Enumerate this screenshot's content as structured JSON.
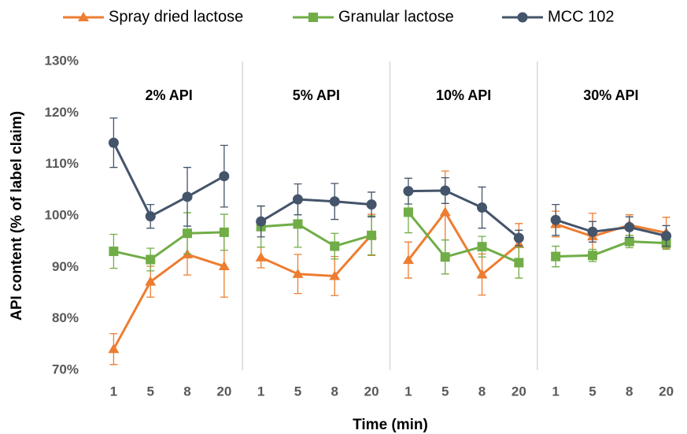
{
  "chart_data": {
    "type": "line",
    "x_label": "Time (min)",
    "y_label": "API content (% of label claim)",
    "ylim": [
      70,
      130
    ],
    "yticks": [
      {
        "value": 70,
        "label": "70%"
      },
      {
        "value": 80,
        "label": "80%"
      },
      {
        "value": 90,
        "label": "90%"
      },
      {
        "value": 100,
        "label": "100%"
      },
      {
        "value": 110,
        "label": "110%"
      },
      {
        "value": 120,
        "label": "120%"
      },
      {
        "value": 130,
        "label": "130%"
      }
    ],
    "legend": [
      {
        "name": "Spray dried lactose",
        "color": "#ed7d31",
        "marker": "triangle"
      },
      {
        "name": "Granular lactose",
        "color": "#70ad47",
        "marker": "square"
      },
      {
        "name": "MCC 102",
        "color": "#44546a",
        "marker": "circle"
      }
    ],
    "panels": [
      {
        "title": "2% API",
        "categories": [
          "1",
          "5",
          "8",
          "20"
        ],
        "series": [
          {
            "values": [
              74.1,
              87.2,
              92.5,
              90.2
            ],
            "errors": [
              3.0,
              3.0,
              4.0,
              6.0
            ]
          },
          {
            "values": [
              93.1,
              91.5,
              96.6,
              96.8
            ],
            "errors": [
              3.3,
              2.2,
              4.0,
              3.5
            ]
          },
          {
            "values": [
              114.2,
              99.9,
              103.7,
              107.7
            ],
            "errors": [
              4.8,
              2.3,
              5.7,
              6.0
            ]
          }
        ]
      },
      {
        "title": "5% API",
        "categories": [
          "1",
          "5",
          "8",
          "20"
        ],
        "series": [
          {
            "values": [
              91.9,
              88.7,
              88.3,
              96.3
            ],
            "errors": [
              2.0,
              3.8,
              3.8,
              4.0
            ]
          },
          {
            "values": [
              97.9,
              98.4,
              94.1,
              96.2
            ],
            "errors": [
              4.0,
              4.5,
              2.5,
              3.8
            ]
          },
          {
            "values": [
              98.9,
              103.2,
              102.8,
              102.2
            ],
            "errors": [
              3.0,
              3.0,
              3.5,
              2.4
            ]
          }
        ]
      },
      {
        "title": "10% API",
        "categories": [
          "1",
          "5",
          "8",
          "20"
        ],
        "series": [
          {
            "values": [
              91.4,
              100.7,
              88.6,
              94.5
            ],
            "errors": [
              3.5,
              8.0,
              4.0,
              4.0
            ]
          },
          {
            "values": [
              100.7,
              92.0,
              94.0,
              90.9
            ],
            "errors": [
              4.0,
              3.3,
              2.0,
              3.0
            ]
          },
          {
            "values": [
              104.8,
              104.9,
              101.6,
              95.7
            ],
            "errors": [
              2.5,
              2.5,
              4.0,
              1.5
            ]
          }
        ]
      },
      {
        "title": "30% API",
        "categories": [
          "1",
          "5",
          "8",
          "20"
        ],
        "series": [
          {
            "values": [
              98.4,
              96.0,
              98.2,
              96.7
            ],
            "errors": [
              2.5,
              4.5,
              2.0,
              3.0
            ]
          },
          {
            "values": [
              92.1,
              92.3,
              95.0,
              94.7
            ],
            "errors": [
              2.0,
              1.2,
              1.2,
              1.2
            ]
          },
          {
            "values": [
              99.2,
              96.9,
              97.8,
              96.1
            ],
            "errors": [
              3.0,
              2.0,
              2.0,
              2.0
            ]
          }
        ]
      }
    ]
  }
}
